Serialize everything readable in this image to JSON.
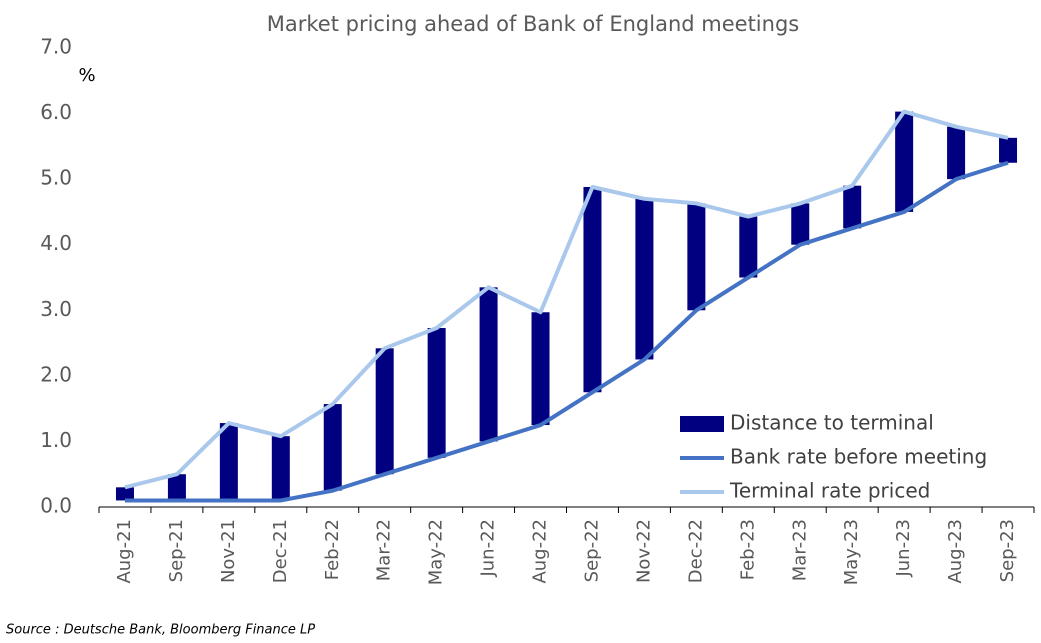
{
  "chart_data": {
    "type": "floating-bar-line",
    "title": "Market pricing ahead of Bank of England meetings",
    "y_label": "%",
    "source": "Source : Deutsche Bank, Bloomberg Finance LP",
    "categories": [
      "Aug-21",
      "Sep-21",
      "Nov-21",
      "Dec-21",
      "Feb-22",
      "Mar-22",
      "May-22",
      "Jun-22",
      "Aug-22",
      "Sep-22",
      "Nov-22",
      "Dec-22",
      "Feb-23",
      "Mar-23",
      "May-23",
      "Jun-23",
      "Aug-23",
      "Sep-23"
    ],
    "series": [
      {
        "name": "Distance to terminal",
        "color": "#000080",
        "kind": "bar",
        "stack_on": 1,
        "values": [
          0.2,
          0.4,
          1.18,
          0.98,
          1.32,
          1.92,
          1.98,
          2.35,
          1.72,
          3.13,
          2.45,
          1.63,
          0.93,
          0.63,
          0.65,
          1.53,
          0.8,
          0.38
        ]
      },
      {
        "name": "Bank rate before meeting",
        "color": "#4472c4",
        "kind": "line",
        "values": [
          0.1,
          0.1,
          0.1,
          0.1,
          0.25,
          0.5,
          0.75,
          1.0,
          1.25,
          1.75,
          2.25,
          3.0,
          3.5,
          4.0,
          4.25,
          4.5,
          5.0,
          5.25
        ]
      },
      {
        "name": "Terminal rate priced",
        "color": "#a9c8ec",
        "kind": "line",
        "values": [
          0.3,
          0.5,
          1.28,
          1.08,
          1.57,
          2.42,
          2.73,
          3.35,
          2.97,
          4.88,
          4.7,
          4.63,
          4.43,
          4.63,
          4.9,
          6.03,
          5.8,
          5.63
        ]
      }
    ],
    "ylim": [
      0,
      7
    ],
    "yticks": [
      {
        "value": 0,
        "label": "0.0"
      },
      {
        "value": 1,
        "label": "1.0"
      },
      {
        "value": 2,
        "label": "2.0"
      },
      {
        "value": 3,
        "label": "3.0"
      },
      {
        "value": 4,
        "label": "4.0"
      },
      {
        "value": 5,
        "label": "5.0"
      },
      {
        "value": 6,
        "label": "6.0"
      },
      {
        "value": 7,
        "label": "7.0"
      }
    ],
    "grid": false,
    "legend": "lower-right"
  }
}
